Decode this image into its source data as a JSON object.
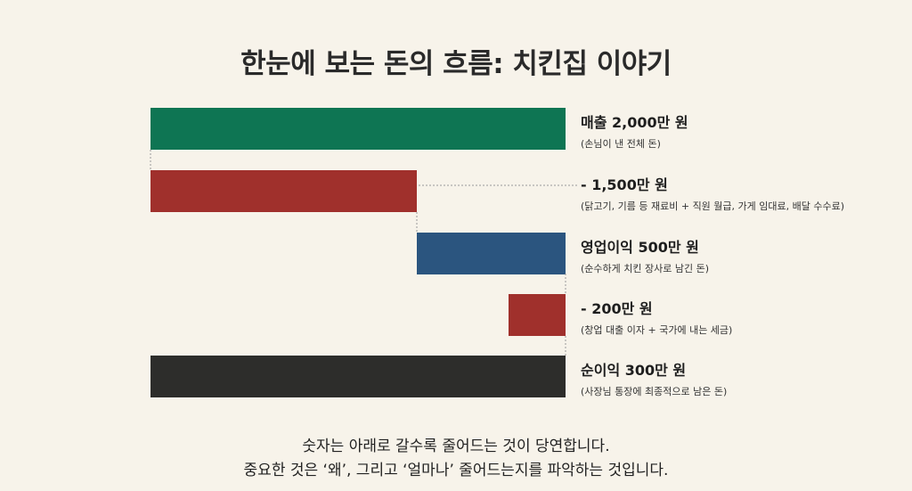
{
  "title": "한눈에 보는 돈의 흐름: 치킨집 이야기",
  "chart_data": {
    "type": "waterfall",
    "orientation": "horizontal",
    "title": "한눈에 보는 돈의 흐름: 치킨집 이야기",
    "unit": "만 원",
    "bars": [
      {
        "label": "매출 2,000만 원",
        "note": "(손님이 낸 전체 돈)",
        "value": 2000,
        "kind": "total",
        "color": "#0e7553"
      },
      {
        "label": "- 1,500만 원",
        "note": "(닭고기, 기름 등 재료비 + 직원 월급, 가게 임대료, 배달 수수료)",
        "value": -1500,
        "kind": "decrease",
        "color": "#a0302c"
      },
      {
        "label": "영업이익 500만 원",
        "note": "(순수하게 치킨 장사로 남긴 돈)",
        "value": 500,
        "kind": "subtotal",
        "color": "#2b557f"
      },
      {
        "label": "- 200만 원",
        "note": "(창업 대출 이자 + 국가에 내는 세금)",
        "value": -200,
        "kind": "decrease",
        "color": "#a0302c"
      },
      {
        "label": "순이익 300만 원",
        "note": "(사장님 통장에 최종적으로 남은 돈)",
        "value": 300,
        "kind": "total",
        "color": "#2d2d2b"
      }
    ]
  },
  "footer": {
    "line1": "숫자는 아래로 갈수록 줄어드는 것이 당연합니다.",
    "line2": "중요한 것은 ‘왜’, 그리고 ‘얼마나’ 줄어드는지를 파악하는 것입니다."
  }
}
